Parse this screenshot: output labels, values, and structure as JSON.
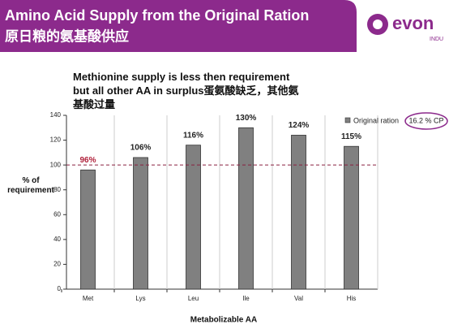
{
  "header": {
    "title": "Amino Acid Supply from the Original Ration",
    "subtitle": "原日粮的氨基酸供应",
    "logo": "evon",
    "logo_small": "INDU"
  },
  "chart_data": {
    "type": "bar",
    "title": "Methionine supply is less then requirement but all other AA in surplus蛋氨酸缺乏，其他氨基酸过量",
    "categories": [
      "Met",
      "Lys",
      "Leu",
      "Ile",
      "Val",
      "His"
    ],
    "series": [
      {
        "name": "Original ration",
        "color": "#808080",
        "values": [
          96,
          106,
          116,
          130,
          124,
          115
        ],
        "value_labels": [
          "96%",
          "106%",
          "116%",
          "130%",
          "124%",
          "115%"
        ],
        "value_label_colors": [
          "#b0203a",
          "#222222",
          "#222222",
          "#222222",
          "#222222",
          "#222222"
        ]
      }
    ],
    "annotation": "16.2 % CP",
    "ylabel": "% of requirement",
    "xlabel": "Metabolizable AA",
    "ylim": [
      0,
      140
    ],
    "yticks": [
      0,
      20,
      40,
      60,
      80,
      100,
      120,
      140
    ],
    "reference_line": 100,
    "reference_color": "#8a2040"
  }
}
